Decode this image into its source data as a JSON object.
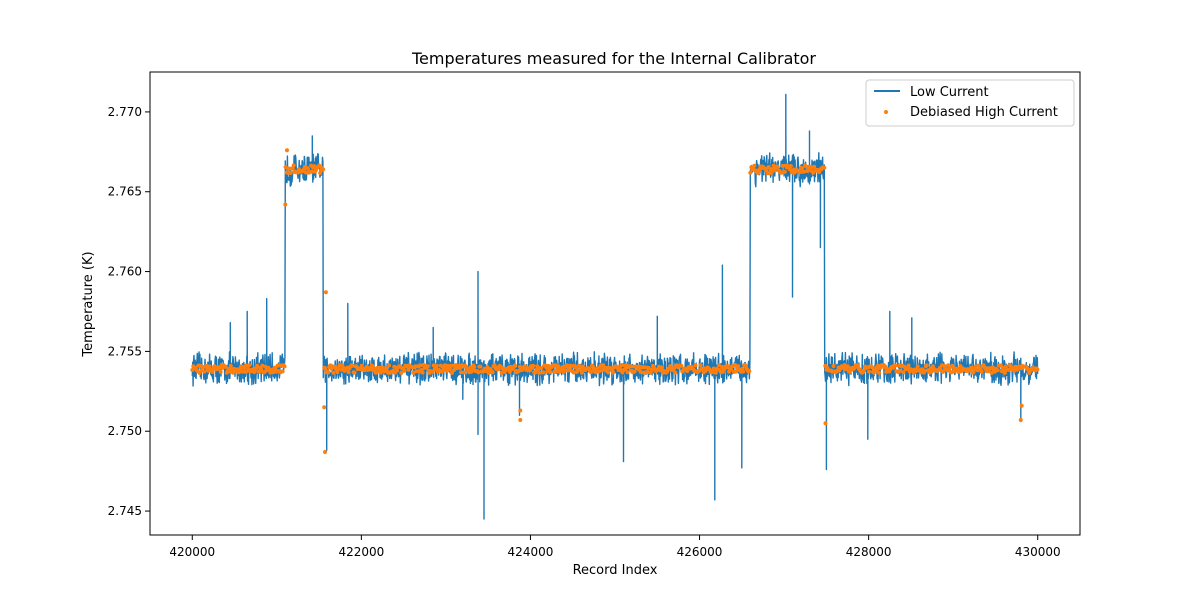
{
  "chart_data": {
    "type": "line",
    "title": "Temperatures measured for the Internal Calibrator",
    "xlabel": "Record Index",
    "ylabel": "Temperature (K)",
    "xlim": [
      419500,
      430500
    ],
    "ylim": [
      2.7435,
      2.7725
    ],
    "xticks": [
      420000,
      422000,
      424000,
      426000,
      428000,
      430000
    ],
    "xtick_labels": [
      "420000",
      "422000",
      "424000",
      "426000",
      "428000",
      "430000"
    ],
    "yticks": [
      2.745,
      2.75,
      2.755,
      2.76,
      2.765,
      2.77
    ],
    "ytick_labels": [
      "2.745",
      "2.750",
      "2.755",
      "2.760",
      "2.765",
      "2.770"
    ],
    "grid": false,
    "legend_position": "top-right",
    "legend": [
      "Low Current",
      "Debiased High Current"
    ],
    "colors": {
      "low_current": "#1f77b4",
      "debiased_high_current": "#ff7f0e"
    },
    "segments": [
      {
        "x_start": 420000,
        "x_end": 421100,
        "level": 2.7539
      },
      {
        "x_start": 421100,
        "x_end": 421550,
        "level": 2.7664
      },
      {
        "x_start": 421550,
        "x_end": 426600,
        "level": 2.7539
      },
      {
        "x_start": 426600,
        "x_end": 427480,
        "level": 2.7664
      },
      {
        "x_start": 427480,
        "x_end": 430000,
        "level": 2.7539
      }
    ],
    "series": [
      {
        "name": "Low Current",
        "style": "line",
        "noise_band": 0.0008,
        "spikes": [
          {
            "x": 420450,
            "y": 2.7568
          },
          {
            "x": 420650,
            "y": 2.7575
          },
          {
            "x": 420880,
            "y": 2.7583
          },
          {
            "x": 421420,
            "y": 2.7685
          },
          {
            "x": 421590,
            "y": 2.7488
          },
          {
            "x": 421840,
            "y": 2.758
          },
          {
            "x": 422850,
            "y": 2.7565
          },
          {
            "x": 423200,
            "y": 2.752
          },
          {
            "x": 423380,
            "y": 2.76
          },
          {
            "x": 423380,
            "y": 2.7498
          },
          {
            "x": 423450,
            "y": 2.7445
          },
          {
            "x": 423870,
            "y": 2.751
          },
          {
            "x": 425100,
            "y": 2.7481
          },
          {
            "x": 425500,
            "y": 2.7572
          },
          {
            "x": 426180,
            "y": 2.7457
          },
          {
            "x": 426270,
            "y": 2.7604
          },
          {
            "x": 426500,
            "y": 2.7477
          },
          {
            "x": 427020,
            "y": 2.7711
          },
          {
            "x": 427100,
            "y": 2.7584
          },
          {
            "x": 427300,
            "y": 2.7688
          },
          {
            "x": 427430,
            "y": 2.7615
          },
          {
            "x": 427500,
            "y": 2.7476
          },
          {
            "x": 427990,
            "y": 2.7495
          },
          {
            "x": 428250,
            "y": 2.7575
          },
          {
            "x": 428510,
            "y": 2.7571
          },
          {
            "x": 429800,
            "y": 2.7506
          }
        ]
      },
      {
        "name": "Debiased High Current",
        "style": "scatter",
        "noise_band": 0.00025,
        "outliers": [
          {
            "x": 421100,
            "y": 2.7642
          },
          {
            "x": 421120,
            "y": 2.7676
          },
          {
            "x": 421580,
            "y": 2.7587
          },
          {
            "x": 421570,
            "y": 2.7487
          },
          {
            "x": 421560,
            "y": 2.7515
          },
          {
            "x": 423880,
            "y": 2.7507
          },
          {
            "x": 423880,
            "y": 2.7513
          },
          {
            "x": 427490,
            "y": 2.7505
          },
          {
            "x": 429800,
            "y": 2.7507
          },
          {
            "x": 429810,
            "y": 2.7516
          }
        ]
      }
    ]
  }
}
